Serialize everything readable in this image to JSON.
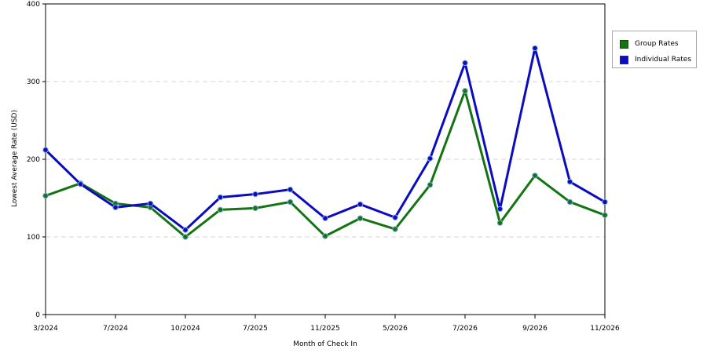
{
  "chart_data": {
    "type": "line",
    "categories": [
      "3/2024",
      "",
      "7/2024",
      "",
      "10/2024",
      "",
      "7/2025",
      "",
      "11/2025",
      "",
      "5/2026",
      "",
      "7/2026",
      "",
      "9/2026",
      "",
      "11/2026"
    ],
    "series": [
      {
        "name": "Group Rates",
        "color": "#127512",
        "values": [
          153,
          169,
          143,
          138,
          100,
          135,
          137,
          145,
          101,
          124,
          110,
          167,
          288,
          118,
          179,
          145,
          128
        ]
      },
      {
        "name": "Individual Rates",
        "color": "#0b0bc0",
        "values": [
          212,
          168,
          138,
          143,
          109,
          151,
          155,
          161,
          124,
          142,
          125,
          201,
          324,
          136,
          343,
          171,
          145
        ]
      }
    ],
    "xlabel": "Month of Check In",
    "ylabel": "Lowest Average Rate (USD)",
    "ylim": [
      0,
      400
    ],
    "yticks": [
      0,
      100,
      200,
      300,
      400
    ],
    "grid": true,
    "legend": "top-right"
  }
}
